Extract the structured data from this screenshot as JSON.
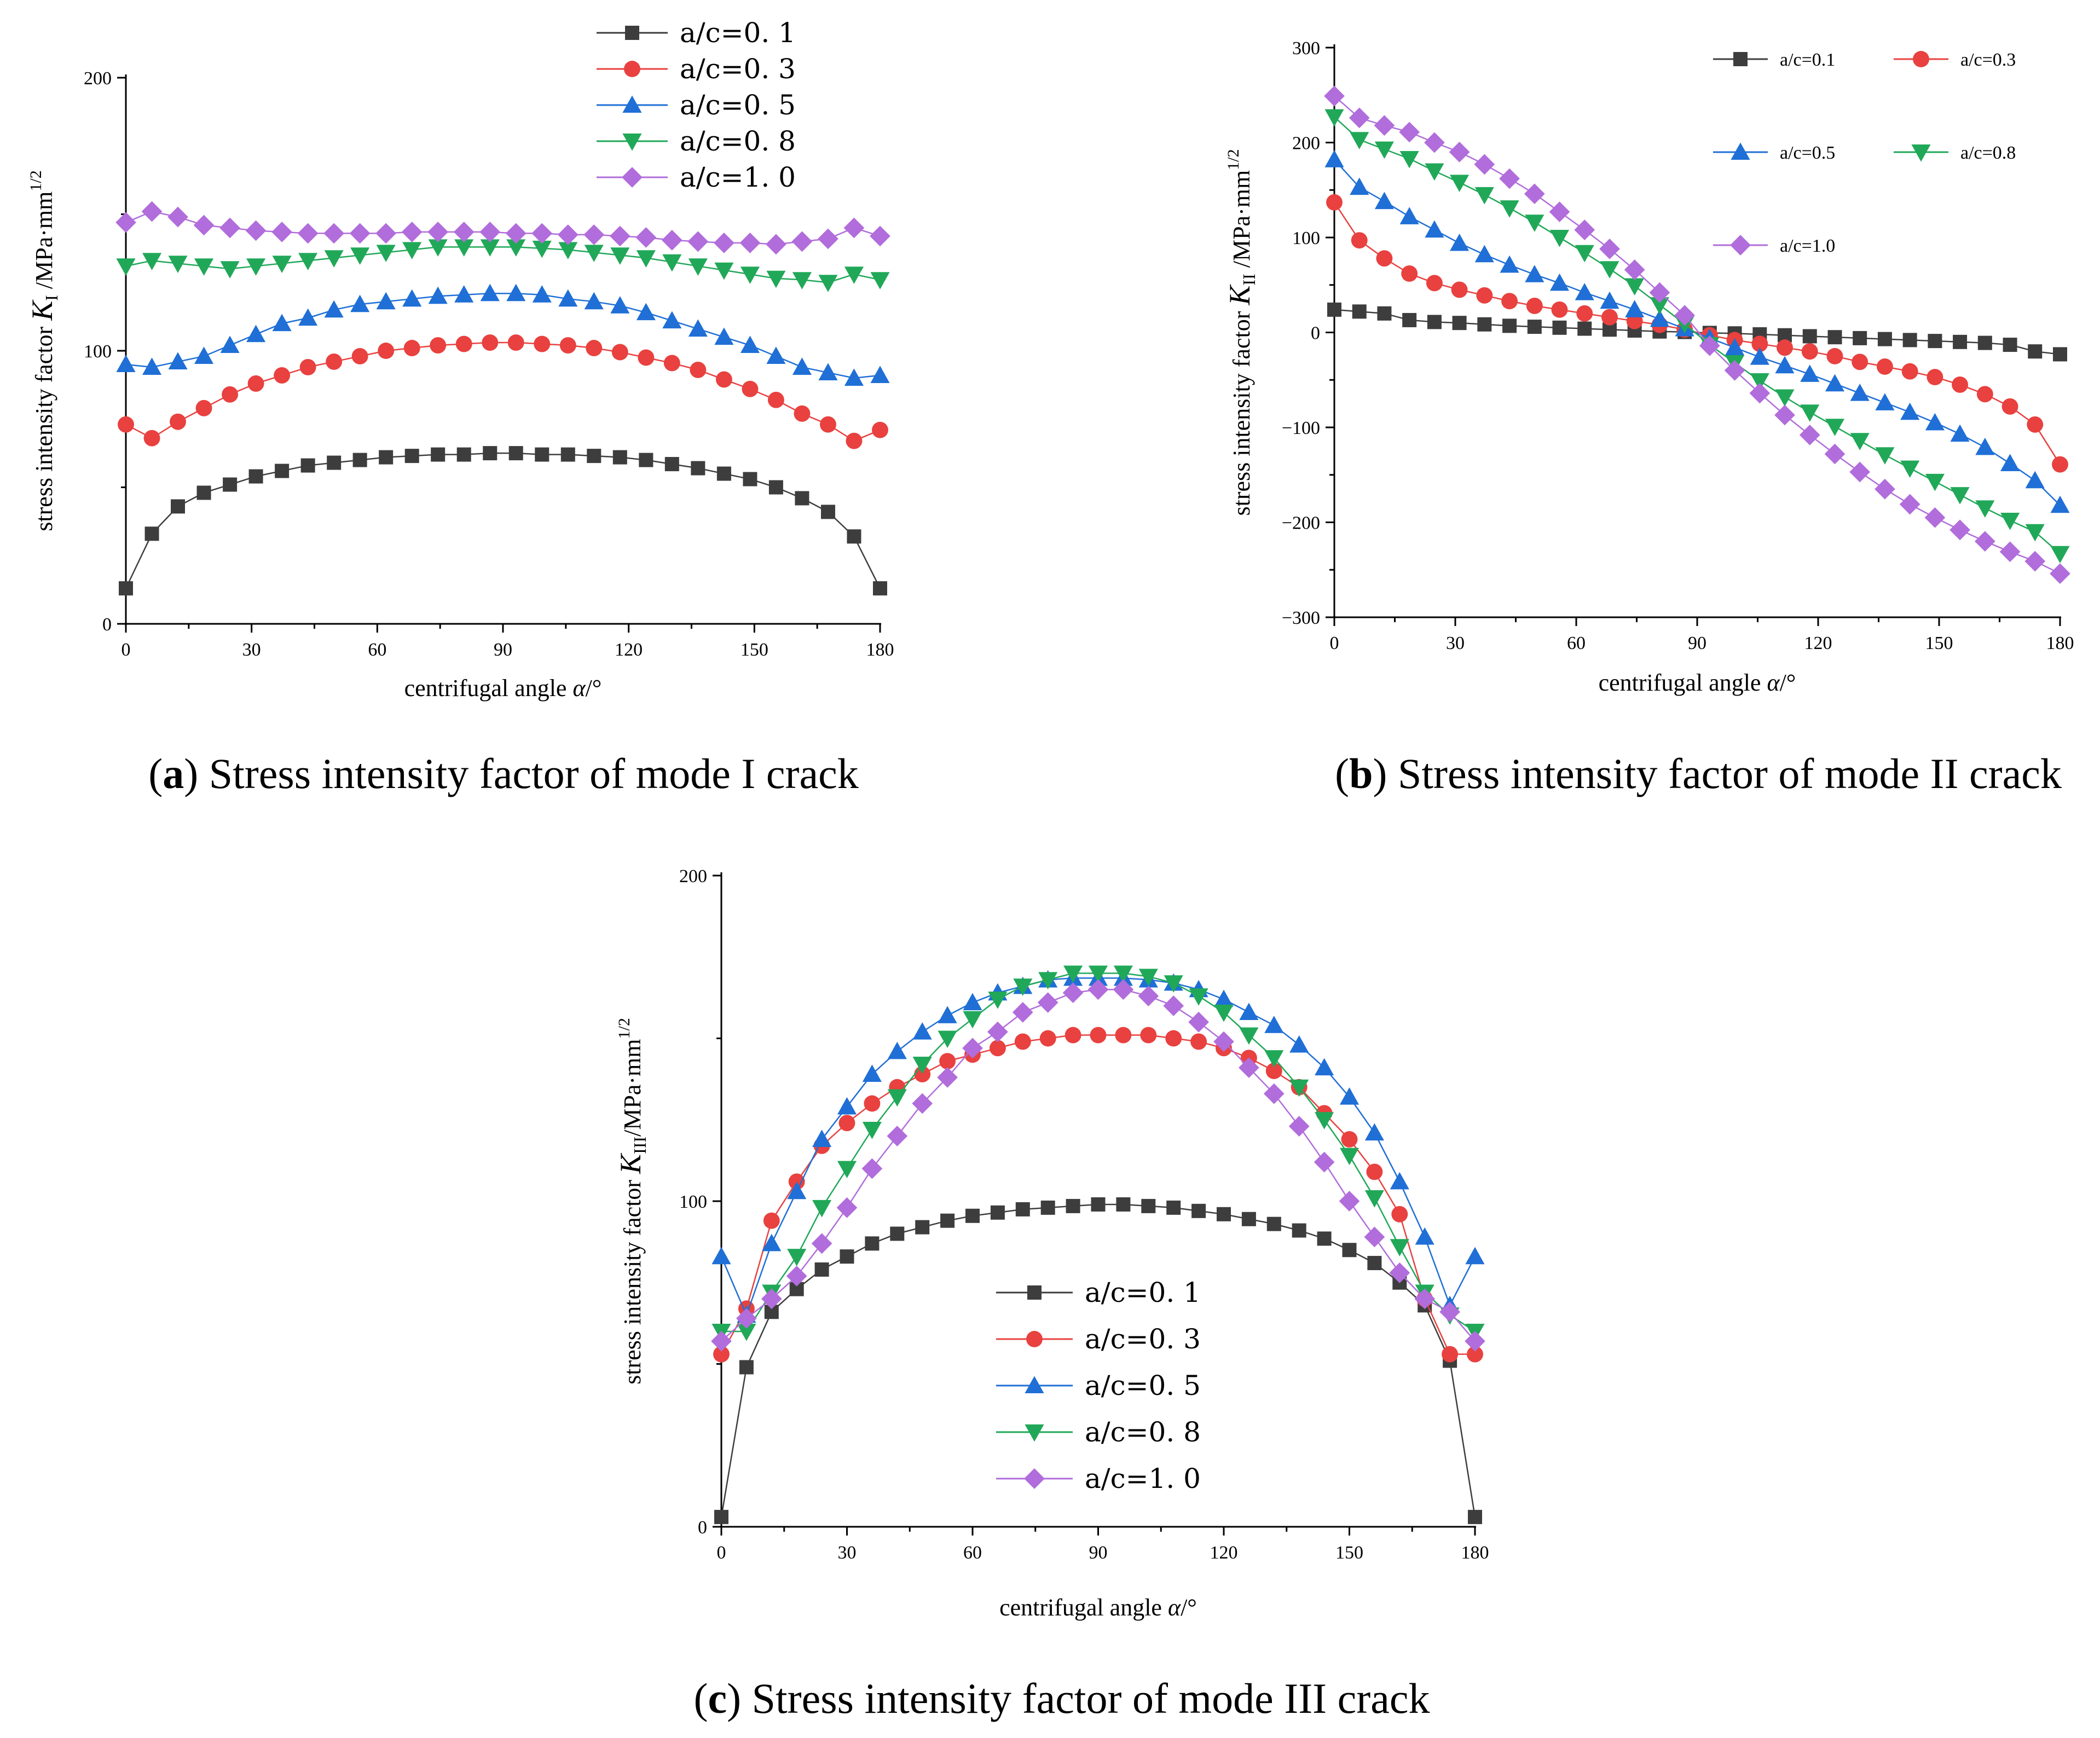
{
  "chart_data": [
    {
      "id": "a",
      "type": "line",
      "caption_letter": "a",
      "caption_text": "Stress intensity factor of mode I crack",
      "xlabel": "centrifugal angle α/°",
      "ylabel": "stress intensity factor K_I /MPa·mm^1/2",
      "ylabel_parts": {
        "prefix": "stress intensity factor ",
        "symbol": "K",
        "subscript": "I",
        "suffix": " /MPa·mm",
        "superscript": "1/2"
      },
      "xlim": [
        0,
        180
      ],
      "ylim": [
        0,
        200
      ],
      "xticks": [
        0,
        30,
        60,
        90,
        120,
        150,
        180
      ],
      "yticks": [
        0,
        100,
        200
      ],
      "x": [
        0,
        6.21,
        12.41,
        18.62,
        24.83,
        31.03,
        37.24,
        43.45,
        49.66,
        55.86,
        62.07,
        68.28,
        74.48,
        80.69,
        86.9,
        93.1,
        99.31,
        105.52,
        111.72,
        117.93,
        124.14,
        130.34,
        136.55,
        142.76,
        148.97,
        155.17,
        161.38,
        167.59,
        173.79,
        180
      ],
      "series": [
        {
          "name": "a/c=0. 1",
          "color": "#3d3d3d",
          "marker": "square",
          "values": [
            13,
            33,
            43,
            48,
            51,
            54,
            56,
            58,
            59,
            60,
            61,
            61.5,
            62,
            62,
            62.5,
            62.5,
            62,
            62,
            61.5,
            61,
            60,
            58.5,
            57,
            55,
            53,
            50,
            46,
            41,
            32,
            13
          ]
        },
        {
          "name": "a/c=0. 3",
          "color": "#e8413f",
          "marker": "circle",
          "values": [
            73,
            68,
            74,
            79,
            84,
            88,
            91,
            94,
            96,
            98,
            100,
            101,
            102,
            102.5,
            103,
            103,
            102.5,
            102,
            101,
            99.5,
            97.5,
            95.5,
            93,
            89.5,
            86,
            82,
            77,
            73,
            67,
            71
          ]
        },
        {
          "name": "a/c=0. 5",
          "color": "#1f6fd6",
          "marker": "triangle-up",
          "values": [
            95,
            94,
            96,
            98,
            102,
            106,
            110,
            112,
            115,
            117,
            118,
            119,
            120,
            120.5,
            121,
            121,
            120.5,
            119,
            118,
            116.5,
            114,
            111,
            108,
            105,
            102,
            98,
            94,
            92,
            90,
            91
          ]
        },
        {
          "name": "a/c=0. 8",
          "color": "#20a858",
          "marker": "triangle-down",
          "values": [
            131,
            133,
            132,
            131,
            130,
            131,
            132,
            133,
            134,
            135,
            136,
            137,
            138,
            138,
            138,
            138,
            137.5,
            137,
            136,
            135,
            134,
            132.5,
            131,
            129.5,
            128,
            126.5,
            126,
            125,
            128,
            126
          ]
        },
        {
          "name": "a/c=1. 0",
          "color": "#b16ddb",
          "marker": "diamond",
          "values": [
            147,
            151,
            149,
            146,
            145,
            144,
            143.5,
            143,
            143,
            143,
            143,
            143.5,
            143.5,
            143.5,
            143.5,
            143,
            143,
            142.5,
            142.5,
            142,
            141.5,
            140.5,
            140,
            139.5,
            139.5,
            139,
            140,
            141,
            145,
            142
          ]
        }
      ],
      "legend_position": "top-right"
    },
    {
      "id": "b",
      "type": "line",
      "caption_letter": "b",
      "caption_text": "Stress intensity factor of mode II crack",
      "xlabel": "centrifugal angle α/°",
      "ylabel": "stress intensity factor K_II /MPa·mm^1/2",
      "ylabel_parts": {
        "prefix": "stress intensity factor ",
        "symbol": "K",
        "subscript": "II",
        "suffix": " /MPa·mm",
        "superscript": "1/2"
      },
      "xlim": [
        0,
        180
      ],
      "ylim": [
        -300,
        300
      ],
      "xticks": [
        0,
        30,
        60,
        90,
        120,
        150,
        180
      ],
      "yticks": [
        -300,
        -200,
        -100,
        0,
        100,
        200,
        300
      ],
      "x": [
        0,
        6.21,
        12.41,
        18.62,
        24.83,
        31.03,
        37.24,
        43.45,
        49.66,
        55.86,
        62.07,
        68.28,
        74.48,
        80.69,
        86.9,
        93.1,
        99.31,
        105.52,
        111.72,
        117.93,
        124.14,
        130.34,
        136.55,
        142.76,
        148.97,
        155.17,
        161.38,
        167.59,
        173.79,
        180
      ],
      "series": [
        {
          "name": "a/c=0.1",
          "color": "#3d3d3d",
          "marker": "square",
          "values": [
            24,
            22,
            20,
            13,
            11,
            10,
            8.5,
            7,
            6,
            5,
            4,
            3,
            2,
            1,
            0.5,
            -0.5,
            -1,
            -2,
            -3,
            -4,
            -5,
            -6,
            -7,
            -8,
            -9,
            -10,
            -11,
            -13,
            -20,
            -23
          ]
        },
        {
          "name": "a/c=0.3",
          "color": "#e8413f",
          "marker": "circle",
          "values": [
            137,
            97,
            78,
            62,
            52,
            45,
            39,
            33,
            28,
            24,
            20,
            16,
            12,
            8,
            3,
            -3,
            -8,
            -12,
            -16,
            -20,
            -25,
            -31,
            -36,
            -41,
            -47,
            -55,
            -65,
            -78,
            -97,
            -139
          ]
        },
        {
          "name": "a/c=0.5",
          "color": "#1f6fd6",
          "marker": "triangle-up",
          "values": [
            182,
            153,
            138,
            122,
            108,
            94,
            82,
            71,
            61,
            52,
            42,
            33,
            24,
            14,
            4,
            -6,
            -16,
            -26,
            -35,
            -44,
            -54,
            -64,
            -74,
            -84,
            -95,
            -107,
            -121,
            -138,
            -156,
            -182
          ]
        },
        {
          "name": "a/c=0.8",
          "color": "#20a858",
          "marker": "triangle-down",
          "values": [
            227,
            203,
            193,
            183,
            170,
            158,
            145,
            131,
            116,
            100,
            84,
            67,
            49,
            29,
            9,
            -13,
            -32,
            -51,
            -68,
            -84,
            -99,
            -114,
            -129,
            -143,
            -157,
            -171,
            -185,
            -198,
            -210,
            -233
          ]
        },
        {
          "name": "a/c=1.0",
          "color": "#b16ddb",
          "marker": "diamond",
          "values": [
            249,
            226,
            218,
            211,
            200,
            190,
            177,
            162,
            146,
            127,
            108,
            88,
            66,
            42,
            18,
            -14,
            -40,
            -64,
            -87,
            -108,
            -128,
            -147,
            -165,
            -181,
            -195,
            -208,
            -220,
            -231,
            -241,
            -254
          ]
        }
      ],
      "legend_position": "top"
    },
    {
      "id": "c",
      "type": "line",
      "caption_letter": "c",
      "caption_text": "Stress intensity factor of mode III crack",
      "xlabel": "centrifugal angle α/°",
      "ylabel": "stress intensity factor K_III /MPa·mm^1/2",
      "ylabel_parts": {
        "prefix": "stress intensity factor ",
        "symbol": "K",
        "subscript": "III",
        "suffix": "/MPa·mm",
        "superscript": "1/2"
      },
      "xlim": [
        0,
        180
      ],
      "ylim": [
        0,
        200
      ],
      "xticks": [
        0,
        30,
        60,
        90,
        120,
        150,
        180
      ],
      "yticks": [
        0,
        100,
        200
      ],
      "x": [
        0,
        6,
        12,
        18,
        24,
        30,
        36,
        42,
        48,
        54,
        60,
        66,
        72,
        78,
        84,
        90,
        96,
        102,
        108,
        114,
        120,
        126,
        132,
        138,
        144,
        150,
        156,
        162,
        168,
        174,
        180
      ],
      "series": [
        {
          "name": "a/c=0. 1",
          "color": "#3d3d3d",
          "marker": "square",
          "values": [
            3,
            49,
            66,
            73,
            79,
            83,
            87,
            90,
            92,
            94,
            95.5,
            96.5,
            97.5,
            98,
            98.5,
            99,
            99,
            98.5,
            98,
            97,
            96,
            94.5,
            93,
            91,
            88.5,
            85,
            81,
            75,
            68,
            51,
            3
          ]
        },
        {
          "name": "a/c=0. 3",
          "color": "#e8413f",
          "marker": "circle",
          "values": [
            53,
            67,
            94,
            106,
            117,
            124,
            130,
            135,
            139,
            143,
            145,
            147,
            149,
            150,
            151,
            151,
            151,
            151,
            150,
            149,
            147,
            144,
            140,
            135,
            127,
            119,
            109,
            96,
            70,
            53,
            53
          ]
        },
        {
          "name": "a/c=0. 5",
          "color": "#1f6fd6",
          "marker": "triangle-up",
          "values": [
            83,
            65,
            87,
            103,
            119,
            129,
            139,
            146,
            152,
            157,
            161,
            164,
            166,
            168,
            168.5,
            168.5,
            168.5,
            168,
            167,
            165,
            162,
            158,
            154,
            148,
            141,
            132,
            121,
            106,
            89,
            68,
            83
          ]
        },
        {
          "name": "a/c=0. 8",
          "color": "#20a858",
          "marker": "triangle-down",
          "values": [
            60,
            60,
            72,
            83,
            98,
            110,
            122,
            132,
            142,
            150,
            156,
            162,
            166,
            168,
            170,
            170,
            170,
            169,
            167,
            163,
            158,
            151,
            144,
            135,
            125,
            114,
            101,
            86,
            72,
            65,
            60
          ]
        },
        {
          "name": "a/c=1. 0",
          "color": "#b16ddb",
          "marker": "diamond",
          "values": [
            57,
            64,
            70,
            77,
            87,
            98,
            110,
            120,
            130,
            138,
            147,
            152,
            158,
            161,
            164,
            165,
            165,
            163,
            160,
            155,
            149,
            141,
            133,
            123,
            112,
            100,
            89,
            78,
            70,
            66,
            57
          ]
        }
      ],
      "legend_position": "bottom-center"
    }
  ]
}
